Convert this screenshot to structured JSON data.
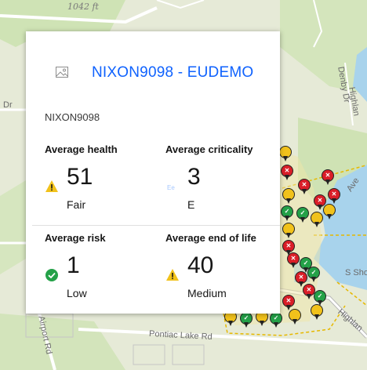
{
  "map": {
    "labels": {
      "elevation": "1042 ft",
      "denby_dr": "Denby Dr",
      "dr": "Dr",
      "highland_1": "Highlan",
      "ave": "Ave",
      "s_shore": "S Sho",
      "highland_2": "Highlan",
      "pontiac_lake_rd": "Pontiac Lake Rd",
      "airport_rd": "Airport Rd"
    }
  },
  "popup": {
    "title": "NIXON9098 - EUDEMO",
    "subtitle": "NIXON9098",
    "image_icon": "image-placeholder-icon",
    "metrics": {
      "health": {
        "label": "Average health",
        "value": "51",
        "rating": "Fair",
        "icon": "warning-icon",
        "icon_color": "#f1c21b"
      },
      "criticality": {
        "label": "Average criticality",
        "value": "3",
        "rating": "E",
        "icon": "criticality-e-icon",
        "icon_color": "#a6c8ff"
      },
      "risk": {
        "label": "Average risk",
        "value": "1",
        "rating": "Low",
        "icon": "check-circle-icon",
        "icon_color": "#24a148"
      },
      "end_of_life": {
        "label": "Average end of life",
        "value": "40",
        "rating": "Medium",
        "icon": "warning-icon",
        "icon_color": "#f1c21b"
      }
    }
  }
}
